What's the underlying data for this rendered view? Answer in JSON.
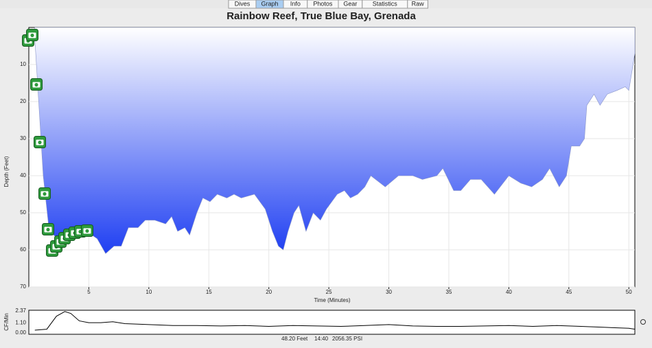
{
  "tabs": [
    "Dives",
    "Graph",
    "Info",
    "Photos",
    "Gear",
    "Statistics",
    "Raw"
  ],
  "status": {
    "depth": "48.20 Feet",
    "time": "14:40",
    "pressure": "2056.35 PSI"
  },
  "chart_data": [
    {
      "type": "area",
      "title": "Rainbow Reef, True Blue Bay, Grenada",
      "y_label": "Depth (Feet)",
      "x_label": "Time (Minutes)",
      "inverted": true,
      "grid": true,
      "color": "#1f3ff2",
      "x": [
        0.5,
        1.2,
        1.7,
        2.8,
        4.8,
        5.7,
        6.4,
        7.1,
        7.7,
        8.3,
        9.1,
        9.7,
        10.5,
        11.4,
        11.9,
        12.4,
        13,
        13.4,
        14,
        14.5,
        15.1,
        15.7,
        16.5,
        17.1,
        17.7,
        18.8,
        19.7,
        20.3,
        20.8,
        21.2,
        21.6,
        22.1,
        22.5,
        23.1,
        23.7,
        24.3,
        24.8,
        25.7,
        26.3,
        26.8,
        27.4,
        28,
        28.5,
        29.7,
        30.8,
        32,
        32.8,
        34,
        34.5,
        35.4,
        36,
        36.8,
        37.7,
        38.8,
        40,
        41,
        41.9,
        42.8,
        43.4,
        44.2,
        44.8,
        45.2,
        45.9,
        46.3,
        46.5,
        47.1,
        47.6,
        48.2,
        49,
        49.7,
        50,
        50.2,
        50.5
      ],
      "values": [
        3,
        40,
        55,
        58,
        55,
        57,
        61,
        59,
        59,
        54,
        54,
        52,
        52,
        53,
        51,
        55,
        54,
        56,
        50,
        46,
        47,
        45,
        46,
        45,
        46,
        45,
        49,
        55,
        59,
        60,
        55,
        50,
        48,
        55,
        50,
        52,
        49,
        45,
        44,
        46,
        45,
        43,
        40,
        43,
        40,
        40,
        41,
        40,
        38,
        44,
        44,
        41,
        41,
        45,
        40,
        42,
        43,
        41,
        38,
        43,
        40,
        32,
        32,
        30,
        21,
        18,
        21,
        18,
        17,
        16,
        17,
        13,
        7
      ],
      "xlim": [
        0,
        50.5
      ],
      "ylim": [
        0,
        70
      ],
      "xticks": [
        5,
        10,
        15,
        20,
        25,
        30,
        35,
        40,
        45,
        50
      ],
      "yticks": [
        10,
        20,
        30,
        40,
        50,
        60,
        70
      ]
    },
    {
      "type": "line",
      "y_label": "CF/Min",
      "color": "#000000",
      "x": [
        0.5,
        1.5,
        2.3,
        3,
        3.5,
        4.2,
        5,
        6,
        7,
        8,
        10,
        12,
        14,
        16,
        18,
        20,
        22,
        24,
        26,
        28,
        30,
        32,
        34,
        36,
        38,
        40,
        42,
        44,
        46,
        48,
        50,
        50.5
      ],
      "values": [
        0.3,
        0.4,
        1.8,
        2.3,
        2.1,
        1.3,
        1.1,
        1.1,
        1.2,
        1.0,
        0.9,
        0.8,
        0.8,
        0.75,
        0.8,
        0.7,
        0.8,
        0.75,
        0.7,
        0.8,
        0.9,
        0.75,
        0.7,
        0.7,
        0.75,
        0.8,
        0.7,
        0.8,
        0.7,
        0.6,
        0.5,
        0.4
      ],
      "xlim": [
        0,
        50.5
      ],
      "ylim": [
        0,
        2.37
      ],
      "yticks": [
        {
          "value": 0,
          "label": "0.00"
        },
        {
          "value": 1.1,
          "label": "1.10"
        },
        {
          "value": 2.37,
          "label": "2.37"
        }
      ]
    }
  ]
}
